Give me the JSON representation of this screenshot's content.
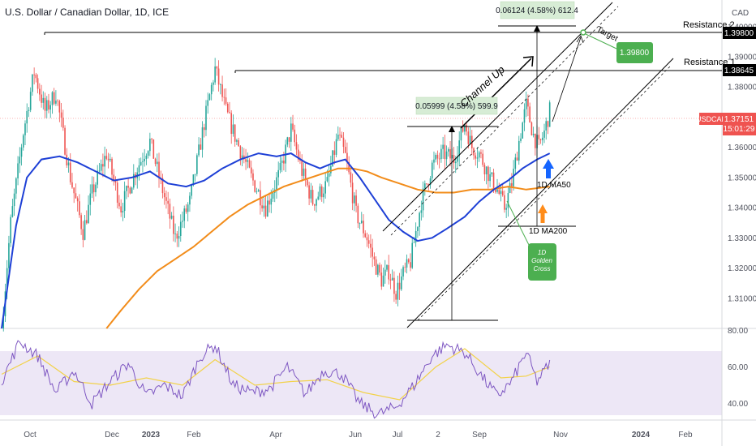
{
  "header": {
    "title": "U.S. Dollar / Canadian Dollar, 1D, ICE",
    "currency": "CAD"
  },
  "chart_data": {
    "type": "candlestick",
    "symbol": "USDCAD",
    "timeframe": "1D",
    "y_axis": {
      "range": [
        1.3,
        1.408
      ],
      "ticks": [
        "1.40000",
        "1.39000",
        "1.38000",
        "1.37000",
        "1.36000",
        "1.35000",
        "1.34000",
        "1.33000",
        "1.32000",
        "1.31000"
      ]
    },
    "x_axis": {
      "ticks": [
        "Oct",
        "Dec",
        "2023",
        "Feb",
        "Apr",
        "Jun",
        "Jul",
        "2",
        "Sep",
        "Nov",
        "2024",
        "Feb"
      ]
    },
    "price_path": [
      [
        0,
        1.3
      ],
      [
        5,
        1.335
      ],
      [
        12,
        1.365
      ],
      [
        18,
        1.385
      ],
      [
        24,
        1.372
      ],
      [
        30,
        1.378
      ],
      [
        38,
        1.35
      ],
      [
        45,
        1.332
      ],
      [
        50,
        1.345
      ],
      [
        58,
        1.358
      ],
      [
        66,
        1.34
      ],
      [
        74,
        1.352
      ],
      [
        82,
        1.362
      ],
      [
        88,
        1.348
      ],
      [
        96,
        1.33
      ],
      [
        104,
        1.342
      ],
      [
        112,
        1.368
      ],
      [
        118,
        1.386
      ],
      [
        124,
        1.372
      ],
      [
        130,
        1.362
      ],
      [
        138,
        1.35
      ],
      [
        146,
        1.34
      ],
      [
        154,
        1.352
      ],
      [
        160,
        1.366
      ],
      [
        166,
        1.352
      ],
      [
        172,
        1.342
      ],
      [
        180,
        1.348
      ],
      [
        186,
        1.364
      ],
      [
        190,
        1.357
      ],
      [
        196,
        1.338
      ],
      [
        202,
        1.33
      ],
      [
        206,
        1.322
      ],
      [
        210,
        1.316
      ],
      [
        214,
        1.319
      ],
      [
        218,
        1.312
      ],
      [
        222,
        1.318
      ],
      [
        226,
        1.322
      ],
      [
        232,
        1.342
      ],
      [
        238,
        1.354
      ],
      [
        244,
        1.358
      ],
      [
        250,
        1.356
      ],
      [
        256,
        1.368
      ],
      [
        260,
        1.36
      ],
      [
        264,
        1.358
      ],
      [
        270,
        1.35
      ],
      [
        274,
        1.346
      ],
      [
        278,
        1.34
      ],
      [
        282,
        1.348
      ],
      [
        286,
        1.362
      ],
      [
        290,
        1.374
      ],
      [
        294,
        1.364
      ],
      [
        297,
        1.36
      ],
      [
        300,
        1.365
      ],
      [
        303,
        1.372
      ]
    ],
    "ma50": [
      [
        0,
        1.3
      ],
      [
        8,
        1.334
      ],
      [
        14,
        1.35
      ],
      [
        22,
        1.356
      ],
      [
        32,
        1.357
      ],
      [
        42,
        1.355
      ],
      [
        52,
        1.352
      ],
      [
        62,
        1.349
      ],
      [
        72,
        1.35
      ],
      [
        82,
        1.352
      ],
      [
        92,
        1.348
      ],
      [
        102,
        1.347
      ],
      [
        112,
        1.349
      ],
      [
        122,
        1.353
      ],
      [
        132,
        1.356
      ],
      [
        142,
        1.358
      ],
      [
        152,
        1.357
      ],
      [
        160,
        1.358
      ],
      [
        168,
        1.355
      ],
      [
        176,
        1.353
      ],
      [
        184,
        1.355
      ],
      [
        190,
        1.356
      ],
      [
        198,
        1.35
      ],
      [
        206,
        1.343
      ],
      [
        214,
        1.336
      ],
      [
        222,
        1.332
      ],
      [
        230,
        1.329
      ],
      [
        238,
        1.33
      ],
      [
        246,
        1.333
      ],
      [
        256,
        1.337
      ],
      [
        264,
        1.342
      ],
      [
        272,
        1.346
      ],
      [
        280,
        1.349
      ],
      [
        288,
        1.353
      ],
      [
        296,
        1.356
      ],
      [
        303,
        1.358
      ]
    ],
    "ma200": [
      [
        58,
        1.3
      ],
      [
        66,
        1.306
      ],
      [
        76,
        1.313
      ],
      [
        86,
        1.319
      ],
      [
        96,
        1.323
      ],
      [
        106,
        1.327
      ],
      [
        116,
        1.332
      ],
      [
        126,
        1.337
      ],
      [
        136,
        1.341
      ],
      [
        146,
        1.344
      ],
      [
        156,
        1.347
      ],
      [
        166,
        1.349
      ],
      [
        176,
        1.351
      ],
      [
        186,
        1.353
      ],
      [
        194,
        1.353
      ],
      [
        202,
        1.352
      ],
      [
        210,
        1.35
      ],
      [
        220,
        1.348
      ],
      [
        230,
        1.346
      ],
      [
        240,
        1.345
      ],
      [
        250,
        1.345
      ],
      [
        260,
        1.346
      ],
      [
        270,
        1.346
      ],
      [
        280,
        1.347
      ],
      [
        290,
        1.346
      ],
      [
        303,
        1.347
      ]
    ],
    "rsi": {
      "range": [
        30,
        82
      ],
      "ticks": [
        "80.00",
        "60.00",
        "40.00"
      ],
      "band": [
        70,
        30
      ],
      "line": [
        [
          0,
          52
        ],
        [
          10,
          74
        ],
        [
          20,
          66
        ],
        [
          30,
          46
        ],
        [
          40,
          58
        ],
        [
          50,
          40
        ],
        [
          60,
          52
        ],
        [
          70,
          62
        ],
        [
          80,
          44
        ],
        [
          90,
          50
        ],
        [
          100,
          44
        ],
        [
          110,
          66
        ],
        [
          118,
          72
        ],
        [
          128,
          50
        ],
        [
          138,
          46
        ],
        [
          148,
          48
        ],
        [
          158,
          60
        ],
        [
          168,
          45
        ],
        [
          178,
          58
        ],
        [
          188,
          56
        ],
        [
          198,
          40
        ],
        [
          208,
          34
        ],
        [
          218,
          38
        ],
        [
          228,
          50
        ],
        [
          238,
          66
        ],
        [
          246,
          72
        ],
        [
          256,
          68
        ],
        [
          266,
          54
        ],
        [
          274,
          44
        ],
        [
          282,
          52
        ],
        [
          290,
          68
        ],
        [
          296,
          52
        ],
        [
          303,
          62
        ]
      ],
      "signal": [
        [
          0,
          56
        ],
        [
          20,
          66
        ],
        [
          40,
          52
        ],
        [
          60,
          50
        ],
        [
          80,
          54
        ],
        [
          100,
          50
        ],
        [
          118,
          64
        ],
        [
          140,
          50
        ],
        [
          160,
          52
        ],
        [
          180,
          53
        ],
        [
          200,
          46
        ],
        [
          220,
          42
        ],
        [
          240,
          60
        ],
        [
          256,
          70
        ],
        [
          276,
          54
        ],
        [
          290,
          55
        ],
        [
          303,
          60
        ]
      ]
    },
    "annotations": {
      "resistance_1": {
        "label": "Resistance 1",
        "price": "1.38645"
      },
      "resistance_2": {
        "label": "Resistance 2",
        "price": "1.39800"
      },
      "current": {
        "symbol": "USDCAD",
        "price": "1.37151",
        "countdown": "15:01:29"
      },
      "measure_1": "0.05999 (4.58%) 599.9",
      "measure_2": "0.06124 (4.58%) 612.4",
      "channel_label": "Channel Up",
      "target_label": "Target",
      "target_price": "1.39800",
      "ma50_label": "1D MA50",
      "ma200_label": "1D MA200",
      "golden_cross": [
        "1D",
        "Golden",
        "Cross"
      ]
    },
    "colors": {
      "bull": "#26a69a",
      "bear": "#ef5350",
      "ma50": "#1e40d6",
      "ma200": "#f28c1a",
      "rsi": "#7e57c2",
      "rsi_signal": "#f2d24a",
      "rsi_band": "#ede7f6",
      "green_label": "#4caf50",
      "current_price": "#ef5350"
    }
  }
}
